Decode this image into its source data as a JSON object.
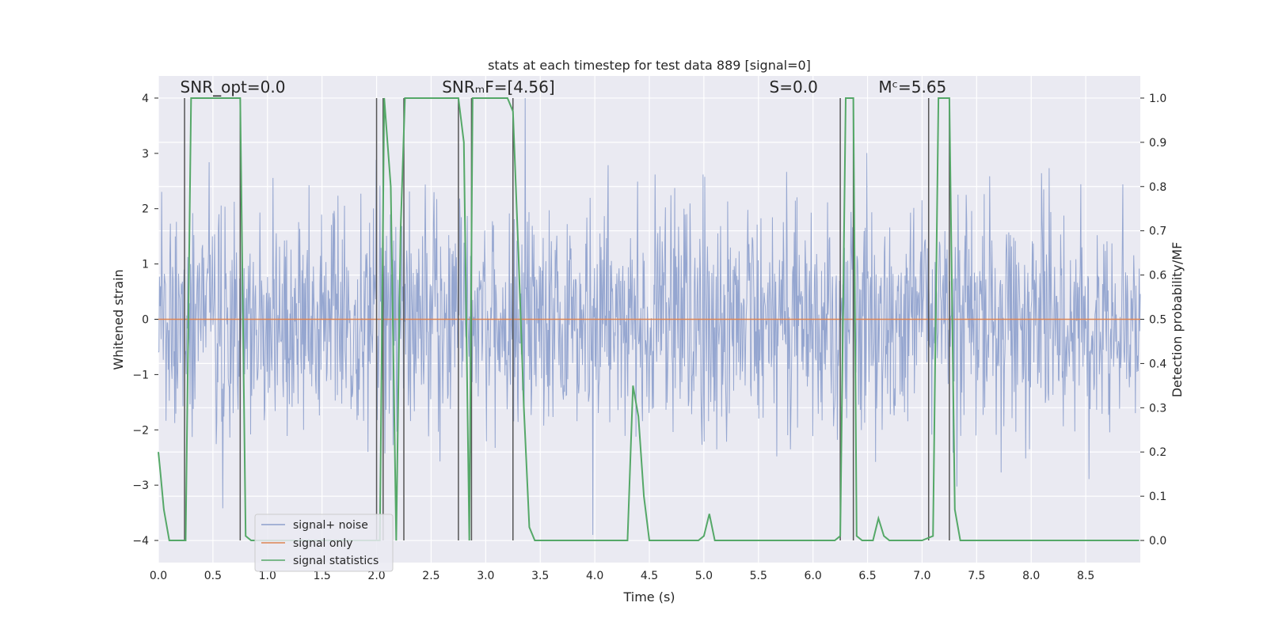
{
  "chart_data": {
    "type": "line",
    "title": "stats at each timestep for test data 889 [signal=0]",
    "xlabel": "Time (s)",
    "ylabel": "Whitened strain",
    "y2label": "Detection probability/MF",
    "xlim": [
      0.0,
      9.0
    ],
    "ylim": [
      -4.4,
      4.4
    ],
    "y2lim": [
      -0.05,
      1.05
    ],
    "xticks": [
      0.0,
      0.5,
      1.0,
      1.5,
      2.0,
      2.5,
      3.0,
      3.5,
      4.0,
      4.5,
      5.0,
      5.5,
      6.0,
      6.5,
      7.0,
      7.5,
      8.0,
      8.5
    ],
    "xtick_labels": [
      "0.0",
      "0.5",
      "1.0",
      "1.5",
      "2.0",
      "2.5",
      "3.0",
      "3.5",
      "4.0",
      "4.5",
      "5.0",
      "5.5",
      "6.0",
      "6.5",
      "7.0",
      "7.5",
      "8.0",
      "8.5"
    ],
    "yticks": [
      4,
      3,
      2,
      1,
      0,
      -1,
      -2,
      -3,
      -4
    ],
    "ytick_labels": [
      "4",
      "3",
      "2",
      "1",
      "0",
      "−1",
      "−2",
      "−3",
      "−4"
    ],
    "y2ticks": [
      1.0,
      0.9,
      0.8,
      0.7,
      0.6,
      0.5,
      0.4,
      0.3,
      0.2,
      0.1,
      0.0
    ],
    "y2tick_labels": [
      "1.0",
      "0.9",
      "0.8",
      "0.7",
      "0.6",
      "0.5",
      "0.4",
      "0.3",
      "0.2",
      "0.1",
      "0.0"
    ],
    "annotations": [
      {
        "text": "SNR_opt=0.0",
        "x": 0.2,
        "y": 4.1
      },
      {
        "text": "SNRₘF=[4.56]",
        "x": 2.6,
        "y": 4.1
      },
      {
        "text": "S=0.0",
        "x": 5.6,
        "y": 4.1
      },
      {
        "text": "Mᶜ=5.65",
        "x": 6.6,
        "y": 4.1
      }
    ],
    "noise": {
      "std": 1.0,
      "min": -3.9,
      "max": 4.0,
      "samples": 1800
    },
    "series": [
      {
        "name": "signal+ noise",
        "color": "#8c9fcc",
        "axis": "left"
      },
      {
        "name": "signal only",
        "color": "#dd8452",
        "axis": "left",
        "x": [
          0.0,
          9.0
        ],
        "y": [
          0.0,
          0.0
        ]
      },
      {
        "name": "signal statistics",
        "color": "#55a868",
        "axis": "right",
        "x": [
          0.0,
          0.02,
          0.05,
          0.1,
          0.15,
          0.2,
          0.25,
          0.3,
          0.32,
          0.35,
          0.4,
          0.5,
          0.6,
          0.7,
          0.75,
          0.8,
          0.85,
          0.9,
          1.0,
          1.2,
          1.5,
          1.8,
          2.0,
          2.03,
          2.07,
          2.1,
          2.13,
          2.18,
          2.22,
          2.26,
          2.3,
          2.33,
          2.4,
          2.5,
          2.6,
          2.7,
          2.75,
          2.8,
          2.85,
          2.88,
          2.9,
          2.95,
          3.0,
          3.1,
          3.2,
          3.25,
          3.3,
          3.35,
          3.4,
          3.45,
          3.5,
          3.55,
          3.7,
          4.0,
          4.3,
          4.35,
          4.4,
          4.45,
          4.5,
          4.6,
          4.8,
          4.95,
          5.0,
          5.05,
          5.1,
          5.2,
          5.3,
          5.5,
          5.8,
          6.1,
          6.2,
          6.25,
          6.3,
          6.35,
          6.37,
          6.4,
          6.45,
          6.5,
          6.55,
          6.6,
          6.65,
          6.7,
          6.8,
          6.9,
          7.0,
          7.1,
          7.15,
          7.2,
          7.25,
          7.3,
          7.35,
          7.4,
          7.6,
          8.0,
          8.5,
          8.99
        ],
        "y": [
          0.2,
          0.15,
          0.07,
          0.0,
          0.0,
          0.0,
          0.0,
          1.0,
          1.0,
          1.0,
          1.0,
          1.0,
          1.0,
          1.0,
          1.0,
          0.01,
          0.0,
          0.0,
          0.0,
          0.0,
          0.0,
          0.0,
          0.0,
          0.0,
          1.0,
          0.9,
          0.8,
          0.0,
          0.7,
          1.0,
          1.0,
          1.0,
          1.0,
          1.0,
          1.0,
          1.0,
          1.0,
          0.9,
          0.0,
          1.0,
          1.0,
          1.0,
          1.0,
          1.0,
          1.0,
          0.97,
          0.65,
          0.3,
          0.03,
          0.0,
          0.0,
          0.0,
          0.0,
          0.0,
          0.0,
          0.35,
          0.28,
          0.1,
          0.0,
          0.0,
          0.0,
          0.0,
          0.01,
          0.06,
          0.0,
          0.0,
          0.0,
          0.0,
          0.0,
          0.0,
          0.0,
          0.01,
          1.0,
          1.0,
          1.0,
          0.01,
          0.0,
          0.0,
          0.0,
          0.05,
          0.01,
          0.0,
          0.0,
          0.0,
          0.0,
          0.01,
          1.0,
          1.0,
          1.0,
          0.07,
          0.0,
          0.0,
          0.0,
          0.0,
          0.0,
          0.0
        ]
      }
    ],
    "vlines": [
      0.24,
      0.75,
      2.0,
      2.06,
      2.25,
      2.75,
      2.87,
      3.25,
      6.25,
      6.37,
      7.06,
      7.25
    ],
    "legend": {
      "position": "bottom-left",
      "entries": [
        "signal+ noise",
        "signal only",
        "signal statistics"
      ]
    }
  }
}
